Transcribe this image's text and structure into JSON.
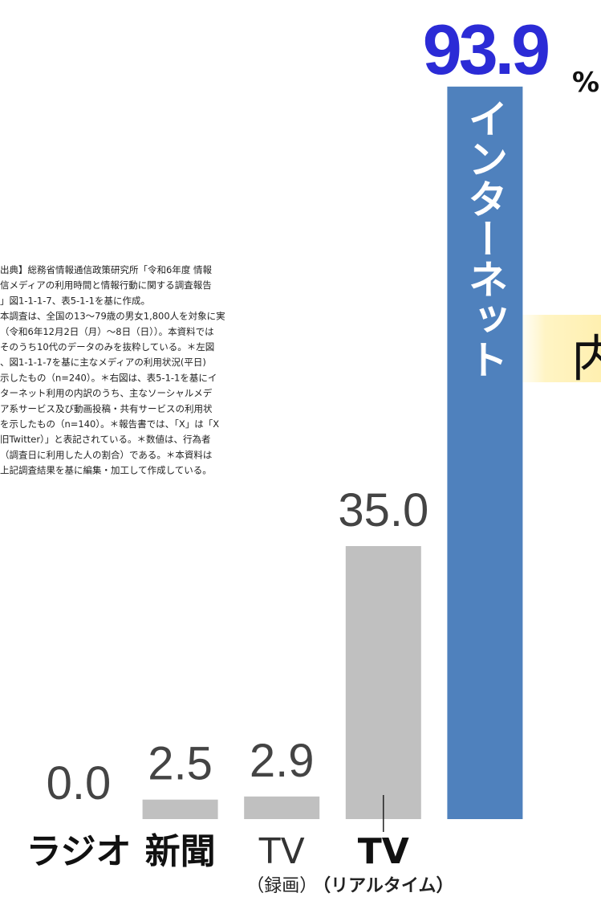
{
  "chart_data": {
    "type": "bar",
    "categories": [
      "ラジオ",
      "新聞",
      "TV",
      "TV",
      "インターネット"
    ],
    "category_subs": [
      null,
      null,
      "（録画）",
      "（リアルタイム）",
      null
    ],
    "values": [
      0,
      2.5,
      2.9,
      35,
      93.9
    ],
    "value_labels": [
      "0.0",
      "2.5",
      "2.9",
      "35.0",
      "93.9"
    ],
    "unit": "%",
    "colors": [
      "#c0c0c0",
      "#c0c0c0",
      "#c0c0c0",
      "#c0c0c0",
      "#4f81bd"
    ],
    "ylim": [
      0,
      105
    ],
    "note": [
      "出典】総務省情報通信政策研究所「令和6年度 情報",
      "信メディアの利用時間と情報行動に関する調査報告",
      "」図1-1-1-7、表5-1-1を基に作成。",
      "本調査は、全国の13～79歳の男女1,800人を対象に実",
      "（令和6年12月2日（月）～8日（日））。本資料では",
      "そのうち10代のデータのみを抜粋している。＊左図",
      "、図1-1-1-7を基に主なメディアの利用状況(平日)",
      "示したもの（n=240）。＊右図は、表5-1-1を基にイ",
      "ターネット利用の内訳のうち、主なソーシャルメデ",
      "ア系サービス及び動画投稿・共有サービスの利用状",
      "を示したもの（n=140）。＊報告書では、「X」は「X",
      "旧Twitter）」と表記されている。＊数値は、行為者",
      "（調査日に利用した人の割合）である。＊本資料は",
      "上記調査結果を基に編集・加工して作成している。"
    ],
    "side_heading": "内"
  }
}
